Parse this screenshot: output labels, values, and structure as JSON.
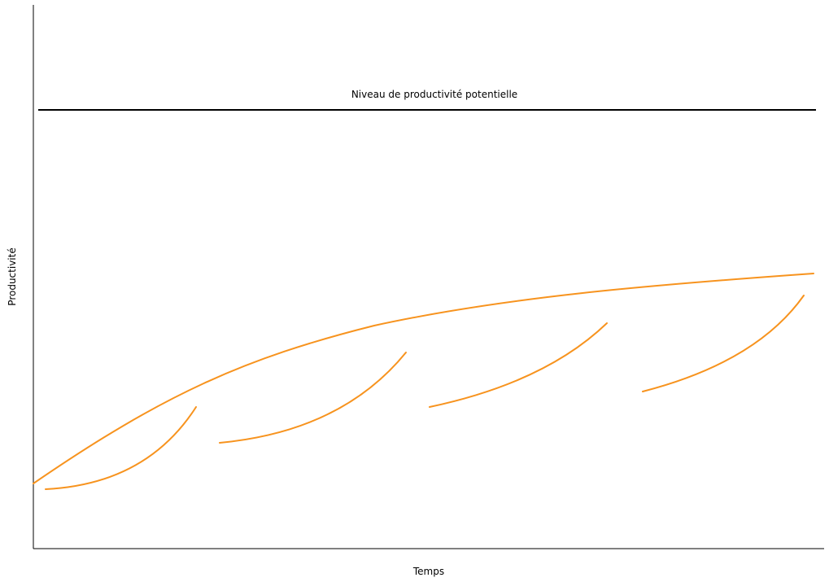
{
  "labels": {
    "potential_level": "Niveau de productivité potentielle",
    "x_axis": "Temps",
    "y_axis": "Productivité"
  },
  "colors": {
    "curve": "#f7931e",
    "line": "#000000",
    "background": "#ffffff"
  }
}
